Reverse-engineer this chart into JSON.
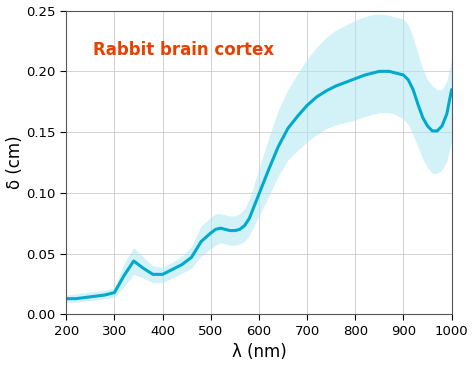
{
  "title": "Rabbit brain cortex",
  "title_color": "#e84000",
  "xlabel": "λ (nm)",
  "ylabel": "δ (cm)",
  "xlim": [
    200,
    1000
  ],
  "ylim": [
    0.0,
    0.25
  ],
  "xticks": [
    200,
    300,
    400,
    500,
    600,
    700,
    800,
    900,
    1000
  ],
  "yticks": [
    0.0,
    0.05,
    0.1,
    0.15,
    0.2,
    0.25
  ],
  "line_color": "#00AACC",
  "fill_color": "#ADE8F4",
  "fill_alpha": 0.55,
  "background_color": "#ffffff",
  "grid_color": "#cccccc",
  "wavelengths": [
    200,
    220,
    240,
    260,
    280,
    300,
    320,
    340,
    360,
    380,
    400,
    420,
    440,
    460,
    480,
    500,
    510,
    520,
    530,
    540,
    550,
    560,
    570,
    580,
    590,
    600,
    620,
    640,
    660,
    680,
    700,
    720,
    740,
    760,
    780,
    800,
    820,
    840,
    850,
    860,
    870,
    880,
    890,
    900,
    910,
    920,
    930,
    940,
    950,
    960,
    970,
    980,
    990,
    1000
  ],
  "mean": [
    0.013,
    0.013,
    0.014,
    0.015,
    0.016,
    0.018,
    0.032,
    0.044,
    0.038,
    0.033,
    0.033,
    0.037,
    0.041,
    0.047,
    0.06,
    0.067,
    0.07,
    0.071,
    0.07,
    0.069,
    0.069,
    0.07,
    0.073,
    0.079,
    0.089,
    0.099,
    0.119,
    0.138,
    0.153,
    0.163,
    0.172,
    0.179,
    0.184,
    0.188,
    0.191,
    0.194,
    0.197,
    0.199,
    0.2,
    0.2,
    0.2,
    0.199,
    0.198,
    0.197,
    0.193,
    0.185,
    0.173,
    0.162,
    0.155,
    0.151,
    0.151,
    0.155,
    0.165,
    0.185
  ],
  "upper": [
    0.016,
    0.017,
    0.018,
    0.019,
    0.02,
    0.022,
    0.042,
    0.055,
    0.047,
    0.04,
    0.039,
    0.043,
    0.048,
    0.056,
    0.073,
    0.08,
    0.083,
    0.083,
    0.082,
    0.081,
    0.081,
    0.083,
    0.087,
    0.095,
    0.107,
    0.12,
    0.145,
    0.168,
    0.185,
    0.198,
    0.21,
    0.22,
    0.228,
    0.234,
    0.238,
    0.242,
    0.245,
    0.247,
    0.247,
    0.247,
    0.246,
    0.245,
    0.244,
    0.243,
    0.238,
    0.228,
    0.215,
    0.202,
    0.193,
    0.188,
    0.185,
    0.185,
    0.192,
    0.21
  ],
  "lower": [
    0.01,
    0.01,
    0.011,
    0.012,
    0.013,
    0.014,
    0.023,
    0.033,
    0.03,
    0.026,
    0.026,
    0.03,
    0.034,
    0.038,
    0.048,
    0.054,
    0.057,
    0.059,
    0.058,
    0.057,
    0.057,
    0.058,
    0.06,
    0.065,
    0.073,
    0.081,
    0.097,
    0.114,
    0.127,
    0.135,
    0.142,
    0.148,
    0.153,
    0.156,
    0.158,
    0.16,
    0.163,
    0.165,
    0.166,
    0.166,
    0.166,
    0.165,
    0.163,
    0.161,
    0.156,
    0.148,
    0.138,
    0.128,
    0.121,
    0.116,
    0.116,
    0.119,
    0.126,
    0.143
  ]
}
